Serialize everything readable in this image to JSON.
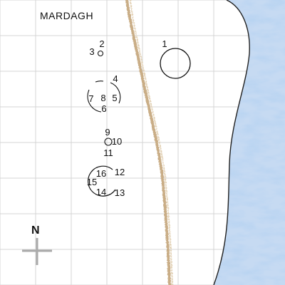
{
  "map": {
    "title": "MARDAGH",
    "north_label": "N",
    "colors": {
      "grid": "#d4d4d4",
      "track": "#c9ad86",
      "sea": "#7aa6dc",
      "sea_light": "#c6daf2",
      "coast": "#222222",
      "marks": "#111111",
      "compass": "#aaaaaa"
    },
    "sites": [
      {
        "id": "1",
        "label": "1"
      },
      {
        "id": "2",
        "label": "2"
      },
      {
        "id": "3",
        "label": "3"
      },
      {
        "id": "4",
        "label": "4"
      },
      {
        "id": "5",
        "label": "5"
      },
      {
        "id": "6",
        "label": "6"
      },
      {
        "id": "7",
        "label": "7"
      },
      {
        "id": "8",
        "label": "8"
      },
      {
        "id": "9",
        "label": "9"
      },
      {
        "id": "10",
        "label": "10"
      },
      {
        "id": "11",
        "label": "11"
      },
      {
        "id": "12",
        "label": "12"
      },
      {
        "id": "13",
        "label": "13"
      },
      {
        "id": "14",
        "label": "14"
      },
      {
        "id": "15",
        "label": "15"
      },
      {
        "id": "16",
        "label": "16"
      }
    ]
  }
}
